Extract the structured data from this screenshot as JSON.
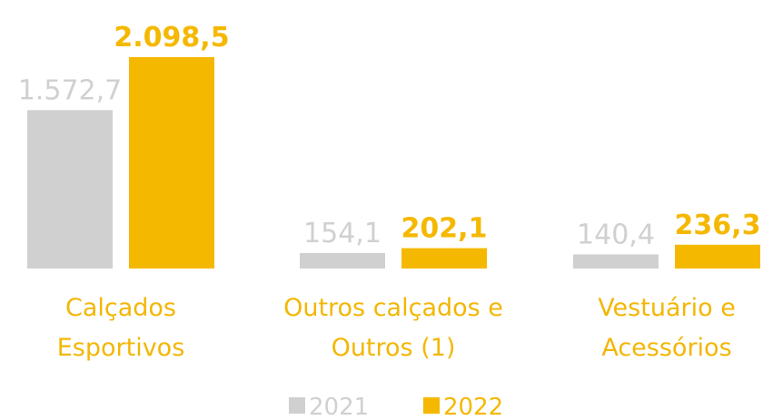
{
  "chart_data": {
    "type": "bar",
    "categories": [
      "Calçados Esportivos",
      "Outros calçados e Outros (1)",
      "Vestuário e Acessórios"
    ],
    "series": [
      {
        "name": "2021",
        "color": "#d0d0d0",
        "values": [
          1572.7,
          154.1,
          140.4
        ],
        "value_labels": [
          "1.572,7",
          "154,1",
          "140,4"
        ]
      },
      {
        "name": "2022",
        "color": "#f5b800",
        "values": [
          2098.5,
          202.1,
          236.3
        ],
        "value_labels": [
          "2.098,5",
          "202,1",
          "236,3"
        ]
      }
    ],
    "category_color": "#f2b705"
  }
}
